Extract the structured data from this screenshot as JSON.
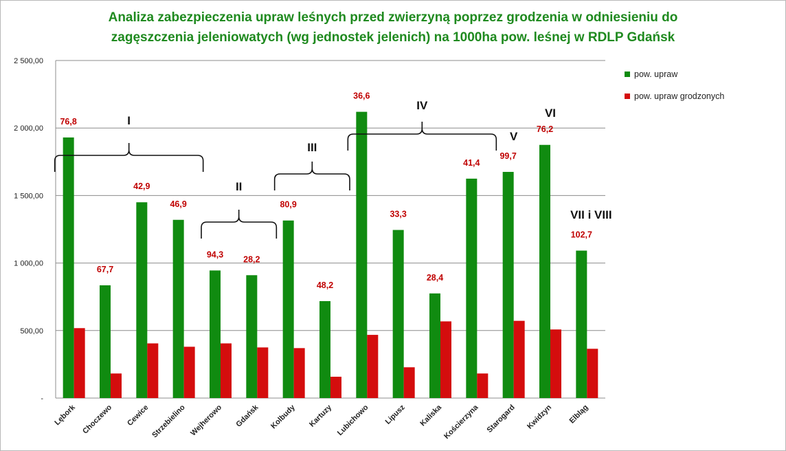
{
  "chart_data": {
    "type": "bar",
    "title_lines": [
      "Analiza zabezpieczenia upraw leśnych przed zwierzyną poprzez grodzenia w odniesieniu do",
      "zagęszczenia jeleniowatych (wg jednostek jelenich) na 1000ha pow. leśnej w RDLP Gdańsk"
    ],
    "categories": [
      "Lębork",
      "Choczewo",
      "Cewice",
      "Strzebielino",
      "Wejherowo",
      "Gdańsk",
      "Kolbudy",
      "Kartuzy",
      "Lubichowo",
      "Lipusz",
      "Kaliska",
      "Kościerzyna",
      "Starogard",
      "Kwidzyn",
      "Elbląg"
    ],
    "series": [
      {
        "name": "pow. upraw",
        "color": "#108b10",
        "values": [
          1930,
          835,
          1450,
          1320,
          945,
          910,
          1315,
          718,
          2120,
          1245,
          775,
          1625,
          1675,
          1875,
          1092
        ]
      },
      {
        "name": "pow. upraw grodzonych",
        "color": "#d40d0d",
        "values": [
          518,
          182,
          405,
          380,
          405,
          375,
          370,
          158,
          468,
          228,
          568,
          182,
          572,
          508,
          365
        ]
      }
    ],
    "data_labels": [
      "76,8",
      "67,7",
      "42,9",
      "46,9",
      "94,3",
      "28,2",
      "80,9",
      "48,2",
      "36,6",
      "33,3",
      "28,4",
      "41,4",
      "99,7",
      "76,2",
      "102,7"
    ],
    "ylim": [
      0,
      2500
    ],
    "y_ticks": [
      {
        "value": 0,
        "label": "-"
      },
      {
        "value": 500,
        "label": "500,00"
      },
      {
        "value": 1000,
        "label": "1 000,00"
      },
      {
        "value": 1500,
        "label": "1 500,00"
      },
      {
        "value": 2000,
        "label": "2 000,00"
      },
      {
        "value": 2500,
        "label": "2 500,00"
      }
    ],
    "groups": [
      {
        "label": "I",
        "from": "Lębork",
        "to": "Strzebielino"
      },
      {
        "label": "II",
        "from": "Wejherowo",
        "to": "Gdańsk"
      },
      {
        "label": "III",
        "from": "Kolbudy",
        "to": "Kartuzy"
      },
      {
        "label": "IV",
        "from": "Lubichowo",
        "to": "Kościerzyna"
      },
      {
        "label": "V",
        "from": "Starogard",
        "to": "Starogard"
      },
      {
        "label": "VI",
        "from": "Kwidzyn",
        "to": "Kwidzyn"
      },
      {
        "label": "VII i VIII",
        "from": "Elbląg",
        "to": "Elbląg"
      }
    ],
    "grid": true,
    "legend_position": "top-right",
    "gridline_color": "#8c8c8c"
  }
}
